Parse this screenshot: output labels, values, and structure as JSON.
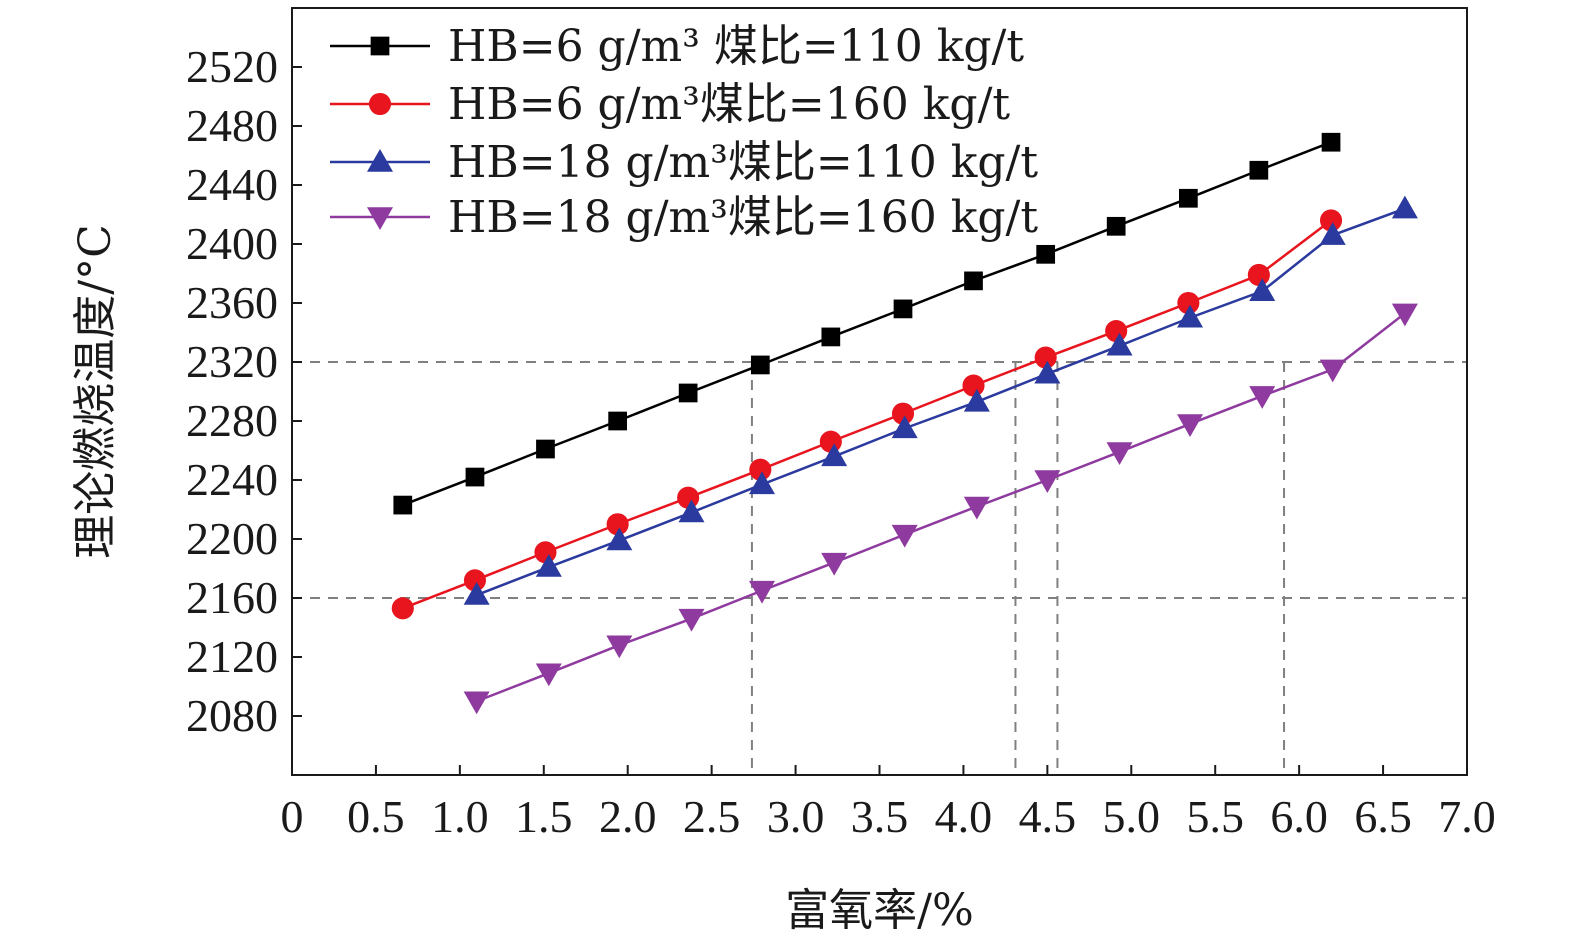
{
  "chart_data": {
    "type": "line",
    "xlabel": "富氧率/%",
    "ylabel": "理论燃烧温度/°C",
    "xlim": [
      0,
      7.0
    ],
    "ylim": [
      2040,
      2560
    ],
    "x_ticks": [
      "0",
      "0.5",
      "1.0",
      "1.5",
      "2.0",
      "2.5",
      "3.0",
      "3.5",
      "4.0",
      "4.5",
      "5.0",
      "5.5",
      "6.0",
      "6.5",
      "7.0"
    ],
    "y_ticks": [
      "2080",
      "2120",
      "2160",
      "2200",
      "2240",
      "2280",
      "2320",
      "2360",
      "2400",
      "2440",
      "2480",
      "2520"
    ],
    "legend_position": "top-left",
    "series": [
      {
        "name": "HB=6 g/m³ 煤比=110 kg/t",
        "color": "#000000",
        "marker": "square",
        "x": [
          0.66,
          1.09,
          1.51,
          1.94,
          2.36,
          2.79,
          3.21,
          3.64,
          4.06,
          4.49,
          4.91,
          5.34,
          5.76,
          6.19
        ],
        "y": [
          2223,
          2242,
          2261,
          2280,
          2299,
          2318,
          2337,
          2356,
          2375,
          2393,
          2412,
          2431,
          2450,
          2469
        ]
      },
      {
        "name": "HB=6 g/m³煤比=160 kg/t",
        "color": "#e8141e",
        "marker": "circle",
        "x": [
          0.66,
          1.09,
          1.51,
          1.94,
          2.36,
          2.79,
          3.21,
          3.64,
          4.06,
          4.49,
          4.91,
          5.34,
          5.76,
          6.19
        ],
        "y": [
          2153,
          2172,
          2191,
          2210,
          2228,
          2247,
          2266,
          2285,
          2304,
          2323,
          2341,
          2360,
          2379,
          2416
        ]
      },
      {
        "name": "HB=18 g/m³煤比=110 kg/t",
        "color": "#2b3a9e",
        "marker": "triangle-up",
        "x": [
          1.1,
          1.53,
          1.95,
          2.38,
          2.8,
          3.23,
          3.65,
          4.08,
          4.5,
          4.93,
          5.35,
          5.78,
          6.2,
          6.63
        ],
        "y": [
          2162,
          2181,
          2199,
          2218,
          2237,
          2256,
          2275,
          2293,
          2312,
          2331,
          2350,
          2368,
          2406,
          2424
        ]
      },
      {
        "name": "HB=18 g/m³煤比=160 kg/t",
        "color": "#8e3a9e",
        "marker": "triangle-down",
        "x": [
          1.1,
          1.53,
          1.95,
          2.38,
          2.8,
          3.23,
          3.65,
          4.08,
          4.5,
          4.93,
          5.35,
          5.78,
          6.2,
          6.63
        ],
        "y": [
          2090,
          2109,
          2128,
          2146,
          2165,
          2184,
          2203,
          2222,
          2240,
          2259,
          2278,
          2297,
          2315,
          2353
        ]
      }
    ],
    "reference_lines": {
      "horizontal_y": [
        2320,
        2160
      ],
      "vertical_x": [
        2.74,
        4.31,
        4.56,
        5.91
      ],
      "color": "#808080",
      "style": "dashed"
    }
  }
}
